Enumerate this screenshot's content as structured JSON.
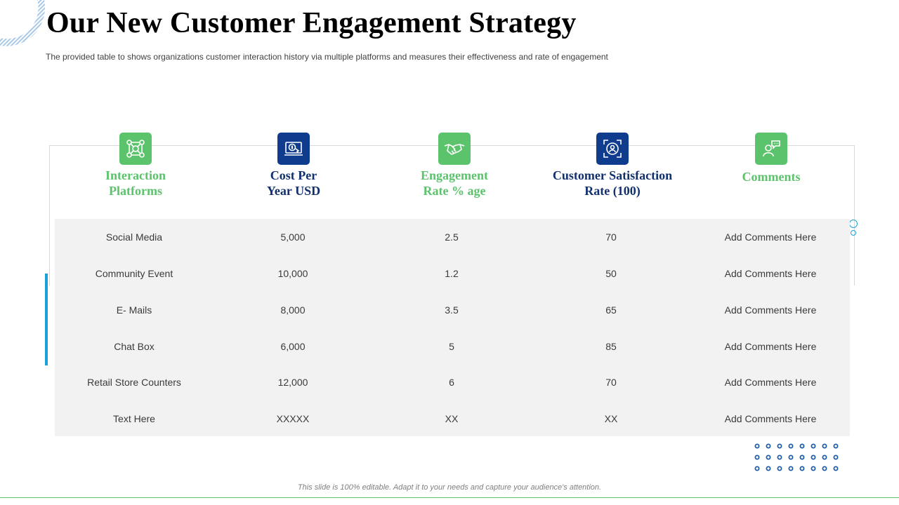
{
  "title": "Our New Customer Engagement Strategy",
  "subtitle": "The provided  table to shows organizations customer interaction history via multiple platforms and measures their effectiveness  and rate of engagement",
  "columns": [
    {
      "lines": [
        "Interaction",
        "Platforms"
      ],
      "icon": "network-people-icon",
      "style": "green"
    },
    {
      "lines": [
        "Cost Per",
        "Year USD"
      ],
      "icon": "dollar-laptop-icon",
      "style": "navy"
    },
    {
      "lines": [
        "Engagement",
        "Rate % age"
      ],
      "icon": "handshake-icon",
      "style": "green"
    },
    {
      "lines": [
        "Customer Satisfaction",
        "Rate (100)"
      ],
      "icon": "user-focus-icon",
      "style": "navy"
    },
    {
      "lines": [
        "Comments"
      ],
      "icon": "chat-user-icon",
      "style": "green"
    }
  ],
  "rows": [
    [
      "Social Media",
      "5,000",
      "2.5",
      "70",
      "Add Comments Here"
    ],
    [
      "Community Event",
      "10,000",
      "1.2",
      "50",
      "Add Comments Here"
    ],
    [
      "E- Mails",
      "8,000",
      "3.5",
      "65",
      "Add Comments Here"
    ],
    [
      "Chat Box",
      "6,000",
      "5",
      "85",
      "Add Comments Here"
    ],
    [
      "Retail Store Counters",
      "12,000",
      "6",
      "70",
      "Add Comments Here"
    ],
    [
      "Text Here",
      "XXXXX",
      "XX",
      "XX",
      "Add Comments Here"
    ]
  ],
  "footer": "This slide is 100% editable. Adapt it to your needs and capture your audience's attention.",
  "colors": {
    "green": "#5cc36d",
    "navy": "#0f3c8c",
    "accent": "#1aa1d6",
    "dots": "#1f5fa8",
    "table_bg": "#f2f2f2"
  }
}
